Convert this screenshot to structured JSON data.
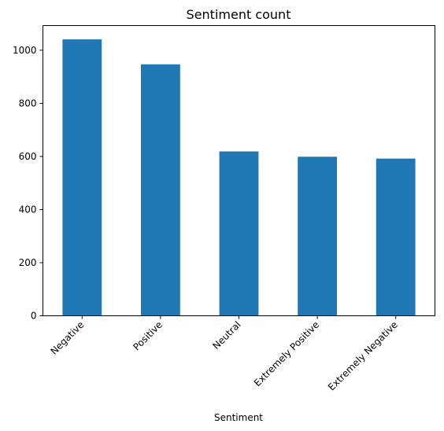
{
  "chart_data": {
    "type": "bar",
    "title": "Sentiment count",
    "xlabel": "Sentiment",
    "ylabel": "",
    "categories": [
      "Negative",
      "Positive",
      "Neutral",
      "Extremely Positive",
      "Extremely Negative"
    ],
    "values": [
      1041,
      947,
      619,
      599,
      592
    ],
    "ylim": [
      0,
      1093
    ],
    "yticks": [
      0,
      200,
      400,
      600,
      800,
      1000
    ],
    "grid": false,
    "legend": "none",
    "bar_color": "#1f77b4"
  }
}
